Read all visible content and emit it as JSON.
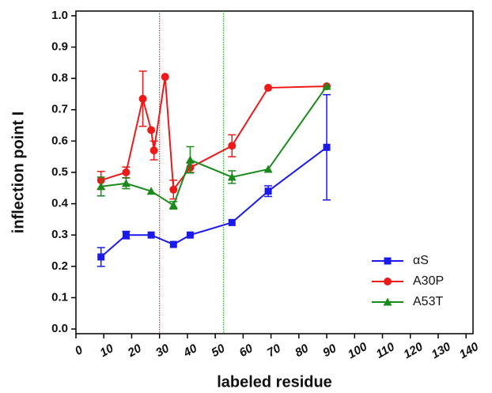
{
  "chart_data": {
    "type": "line",
    "x_label": "labeled residue",
    "y_label": "inflection point I",
    "xlim": [
      0,
      142.5
    ],
    "ylim": [
      -0.015,
      1.015
    ],
    "xticks": [
      0,
      10,
      20,
      30,
      40,
      50,
      60,
      70,
      80,
      90,
      100,
      110,
      120,
      130,
      140
    ],
    "yticks": [
      {
        "value": 0,
        "label": "0.0"
      },
      0.1,
      0.2,
      0.3,
      0.4,
      0.5,
      0.6,
      0.7,
      0.8,
      0.9,
      {
        "value": 1,
        "label": "1.0"
      }
    ],
    "legend": "lower right",
    "vlines": [
      {
        "x": 30,
        "color": "#ee2222"
      },
      {
        "x": 53,
        "color": "#22aa22"
      }
    ],
    "series": [
      {
        "name": "αS",
        "color": "#1a1aee",
        "marker": "square",
        "x": [
          9,
          18,
          27,
          35,
          41,
          56,
          69,
          90
        ],
        "values": [
          0.23,
          0.3,
          0.3,
          0.27,
          0.3,
          0.34,
          0.44,
          0.58
        ],
        "errors": [
          0.03,
          0.012,
          null,
          null,
          null,
          null,
          0.017,
          0.168
        ]
      },
      {
        "name": "A30P",
        "color": "#ee1a1a",
        "marker": "circle",
        "x": [
          9,
          18,
          24,
          27,
          28,
          32,
          35,
          41,
          56,
          69,
          90
        ],
        "values": [
          0.475,
          0.5,
          0.735,
          0.635,
          0.57,
          0.805,
          0.445,
          0.515,
          0.585,
          0.77,
          0.775
        ],
        "errors": [
          0.028,
          0.017,
          0.088,
          null,
          0.03,
          null,
          0.03,
          0.015,
          0.035,
          null,
          null
        ]
      },
      {
        "name": "A53T",
        "color": "#1a8a1a",
        "marker": "triangle",
        "x": [
          9,
          18,
          27,
          35,
          41,
          56,
          69,
          90
        ],
        "values": [
          0.455,
          0.465,
          0.44,
          0.395,
          0.54,
          0.485,
          0.51,
          0.775
        ],
        "errors": [
          0.03,
          0.017,
          null,
          0.012,
          0.042,
          0.02,
          null,
          null
        ]
      }
    ]
  }
}
